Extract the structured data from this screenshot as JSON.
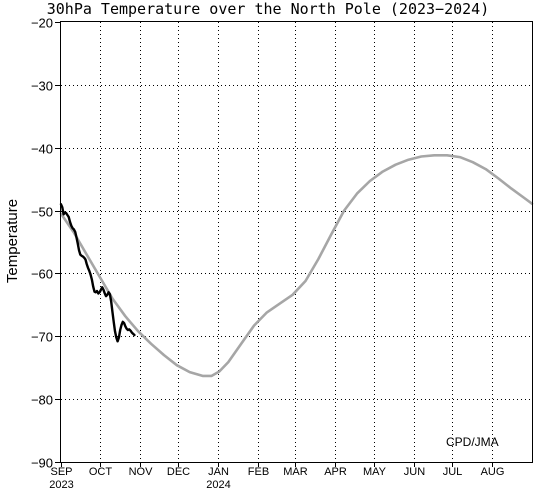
{
  "chart_data": {
    "type": "line",
    "title": "30hPa Temperature over the North Pole (2023−2024)",
    "ylabel": "Temperature",
    "xlabel": "",
    "ylim": [
      -90,
      -20
    ],
    "yticks": [
      -20,
      -30,
      -40,
      -50,
      -60,
      -70,
      -80,
      -90
    ],
    "ytick_labels": [
      "−20",
      "−30",
      "−40",
      "−50",
      "−60",
      "−70",
      "−80",
      "−90"
    ],
    "x_start_day": 0,
    "x_end_day": 366,
    "months": [
      {
        "label": "SEP",
        "day": 0,
        "year": "2023"
      },
      {
        "label": "OCT",
        "day": 30
      },
      {
        "label": "NOV",
        "day": 61
      },
      {
        "label": "DEC",
        "day": 91
      },
      {
        "label": "JAN",
        "day": 122,
        "year": "2024"
      },
      {
        "label": "FEB",
        "day": 153
      },
      {
        "label": "MAR",
        "day": 182
      },
      {
        "label": "APR",
        "day": 213
      },
      {
        "label": "MAY",
        "day": 243
      },
      {
        "label": "JUN",
        "day": 274
      },
      {
        "label": "JUL",
        "day": 304
      },
      {
        "label": "AUG",
        "day": 335
      }
    ],
    "grid": true,
    "credit": "CPD/JMA",
    "series": [
      {
        "role": "climatology",
        "color": "#a6a6a6",
        "x": [
          0,
          10,
          20,
          30,
          40,
          50,
          60,
          70,
          80,
          90,
          100,
          110,
          117,
          123,
          130,
          140,
          150,
          160,
          170,
          180,
          190,
          200,
          210,
          220,
          230,
          240,
          250,
          260,
          270,
          280,
          290,
          300,
          310,
          320,
          330,
          340,
          350,
          360,
          366
        ],
        "values": [
          -50.5,
          -53.5,
          -57.0,
          -60.5,
          -64.0,
          -66.8,
          -69.2,
          -71.2,
          -73.0,
          -74.6,
          -75.7,
          -76.3,
          -76.3,
          -75.6,
          -74.1,
          -71.2,
          -68.3,
          -66.2,
          -64.8,
          -63.4,
          -61.2,
          -57.7,
          -53.8,
          -50.0,
          -47.3,
          -45.3,
          -43.8,
          -42.7,
          -41.9,
          -41.4,
          -41.2,
          -41.2,
          -41.5,
          -42.3,
          -43.4,
          -44.9,
          -46.5,
          -48.0,
          -48.9
        ]
      },
      {
        "role": "observed",
        "color": "#000000",
        "x": [
          0,
          1,
          2,
          3,
          4,
          5,
          6,
          7,
          8,
          9,
          10,
          11,
          12,
          13,
          14,
          15,
          16,
          17,
          18,
          19,
          20,
          21,
          22,
          23,
          24,
          25,
          26,
          27,
          28,
          29,
          30,
          31,
          32,
          33,
          34,
          35,
          36,
          37,
          38,
          39,
          40,
          41,
          42,
          43,
          44,
          45,
          46,
          47,
          48,
          49,
          50,
          51,
          52,
          53,
          54,
          55,
          56,
          57
        ],
        "values": [
          -49.0,
          -49.5,
          -50.6,
          -50.3,
          -50.4,
          -50.7,
          -51.0,
          -51.8,
          -52.4,
          -52.8,
          -53.0,
          -53.4,
          -54.2,
          -55.2,
          -56.3,
          -57.0,
          -57.2,
          -57.3,
          -57.5,
          -57.8,
          -58.5,
          -59.1,
          -59.6,
          -60.2,
          -61.0,
          -62.1,
          -62.9,
          -63.0,
          -62.8,
          -63.2,
          -63.0,
          -62.6,
          -62.2,
          -62.6,
          -63.2,
          -63.6,
          -63.4,
          -63.0,
          -63.3,
          -64.5,
          -66.2,
          -67.8,
          -69.2,
          -70.2,
          -70.8,
          -70.2,
          -69.0,
          -68.2,
          -67.7,
          -67.9,
          -68.4,
          -68.8,
          -69.0,
          -68.9,
          -69.1,
          -69.4,
          -69.6,
          -69.8
        ]
      }
    ]
  }
}
